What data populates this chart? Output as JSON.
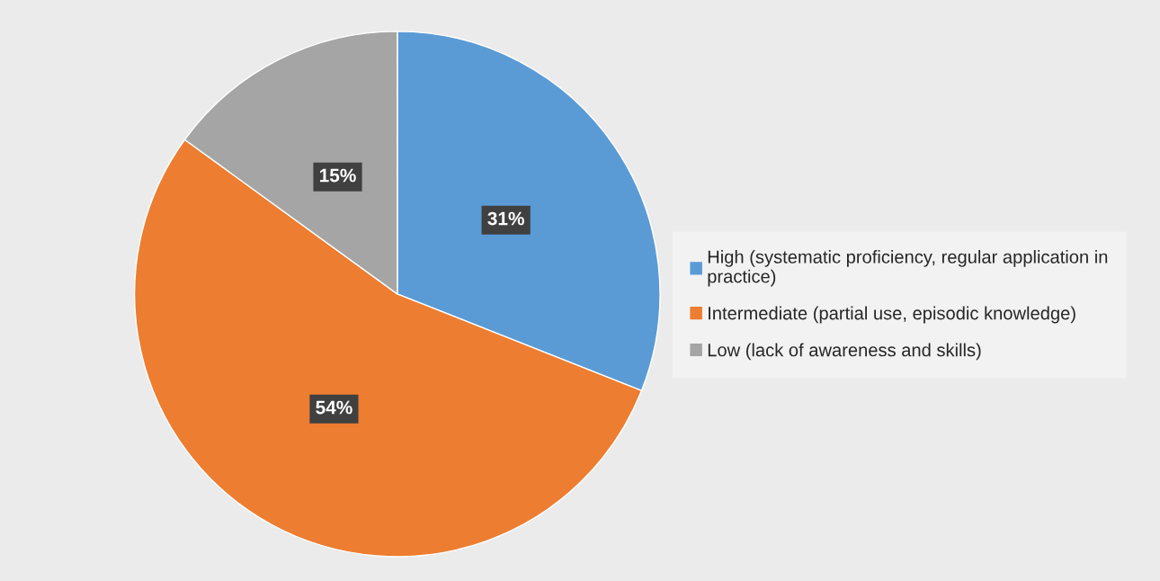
{
  "chart_data": {
    "type": "pie",
    "categories": [
      "High (systematic proficiency, regular application in practice)",
      "Intermediate (partial use, episodic knowledge)",
      "Low (lack of awareness and skills)"
    ],
    "values": [
      31,
      54,
      15
    ],
    "colors": [
      "#5b9bd5",
      "#ed7d31",
      "#a5a5a5"
    ],
    "value_labels": [
      "31%",
      "54%",
      "15%"
    ],
    "legend": "right"
  }
}
